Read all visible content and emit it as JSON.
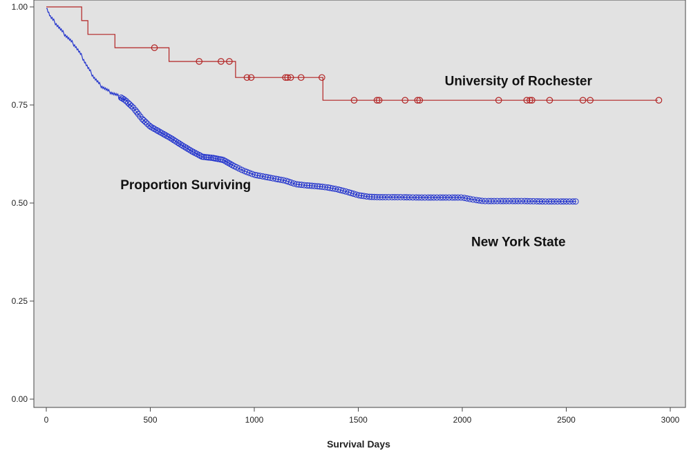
{
  "chart_data": {
    "type": "line",
    "title": "",
    "xlabel": "Survival Days",
    "ylabel": "",
    "xlim": [
      0,
      3000
    ],
    "ylim": [
      0,
      1
    ],
    "x_ticks": [
      0,
      500,
      1000,
      1500,
      2000,
      2500,
      3000
    ],
    "x_tick_labels": [
      "0",
      "500",
      "1000",
      "1500",
      "2000",
      "2500",
      "3000"
    ],
    "y_ticks": [
      0,
      0.25,
      0.5,
      0.75,
      1
    ],
    "y_tick_labels": [
      "0.00",
      "0.25",
      "0.50",
      "0.75",
      "1.00"
    ],
    "grid": false,
    "background": "#e2e2e2",
    "annotations": [
      {
        "text": "University of Rochester",
        "x": 2270,
        "y": 0.8
      },
      {
        "text": "Proportion Surviving",
        "x": 670,
        "y": 0.535
      },
      {
        "text": "New York State",
        "x": 2270,
        "y": 0.39
      }
    ],
    "series": [
      {
        "name": "University of Rochester",
        "color": "#b22222",
        "step": true,
        "values": [
          [
            0,
            1.0
          ],
          [
            170,
            1.0
          ],
          [
            170,
            0.965
          ],
          [
            200,
            0.965
          ],
          [
            200,
            0.93
          ],
          [
            330,
            0.93
          ],
          [
            330,
            0.896
          ],
          [
            590,
            0.896
          ],
          [
            590,
            0.861
          ],
          [
            910,
            0.861
          ],
          [
            910,
            0.82
          ],
          [
            1330,
            0.82
          ],
          [
            1330,
            0.762
          ],
          [
            2940,
            0.762
          ]
        ],
        "censored": [
          520,
          735,
          840,
          880,
          965,
          985,
          1150,
          1160,
          1175,
          1225,
          1325,
          1480,
          1590,
          1600,
          1725,
          1785,
          1795,
          2175,
          2310,
          2325,
          2335,
          2420,
          2580,
          2615,
          2945
        ]
      },
      {
        "name": "New York State",
        "color": "#2233cc",
        "step": false,
        "values": [
          [
            0,
            1.0
          ],
          [
            20,
            0.975
          ],
          [
            50,
            0.955
          ],
          [
            80,
            0.935
          ],
          [
            110,
            0.918
          ],
          [
            140,
            0.9
          ],
          [
            170,
            0.875
          ],
          [
            200,
            0.845
          ],
          [
            230,
            0.82
          ],
          [
            260,
            0.8
          ],
          [
            300,
            0.785
          ],
          [
            350,
            0.772
          ],
          [
            380,
            0.762
          ],
          [
            420,
            0.742
          ],
          [
            460,
            0.715
          ],
          [
            500,
            0.695
          ],
          [
            550,
            0.68
          ],
          [
            600,
            0.665
          ],
          [
            650,
            0.648
          ],
          [
            700,
            0.632
          ],
          [
            750,
            0.618
          ],
          [
            800,
            0.615
          ],
          [
            850,
            0.61
          ],
          [
            900,
            0.595
          ],
          [
            950,
            0.582
          ],
          [
            1000,
            0.572
          ],
          [
            1050,
            0.567
          ],
          [
            1100,
            0.562
          ],
          [
            1150,
            0.557
          ],
          [
            1200,
            0.548
          ],
          [
            1250,
            0.545
          ],
          [
            1300,
            0.543
          ],
          [
            1350,
            0.54
          ],
          [
            1400,
            0.535
          ],
          [
            1450,
            0.528
          ],
          [
            1500,
            0.52
          ],
          [
            1550,
            0.516
          ],
          [
            1600,
            0.515
          ],
          [
            1700,
            0.515
          ],
          [
            1800,
            0.514
          ],
          [
            1900,
            0.514
          ],
          [
            2000,
            0.514
          ],
          [
            2050,
            0.509
          ],
          [
            2100,
            0.505
          ],
          [
            2200,
            0.505
          ],
          [
            2300,
            0.505
          ],
          [
            2400,
            0.504
          ],
          [
            2550,
            0.504
          ]
        ],
        "censored_range": [
          360,
          2545
        ]
      }
    ]
  }
}
